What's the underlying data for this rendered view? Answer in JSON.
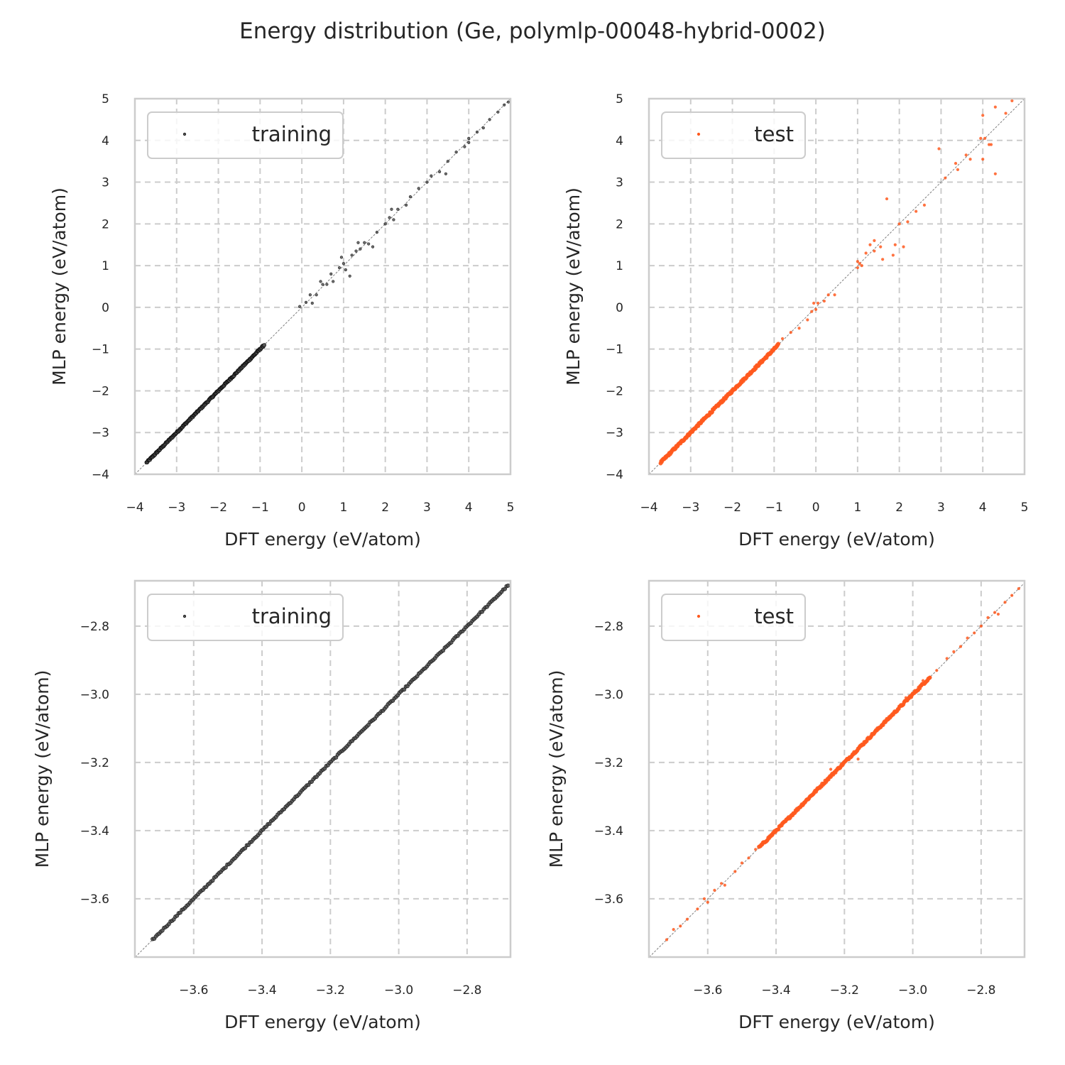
{
  "title": "Energy distribution (Ge, polymlp-00048-hybrid-0002)",
  "colors": {
    "training": "#000000",
    "test": "#ff5a1f",
    "diagonal": "#808080",
    "grid": "#cccccc",
    "spine": "#cccccc"
  },
  "chart_data": [
    {
      "type": "scatter",
      "panel": "top-left",
      "xlabel": "DFT energy (eV/atom)",
      "ylabel": "MLP energy (eV/atom)",
      "xlim": [
        -4,
        5
      ],
      "ylim": [
        -4,
        5
      ],
      "xticks": [
        "−4",
        "−3",
        "−2",
        "−1",
        "0",
        "1",
        "2",
        "3",
        "4",
        "5"
      ],
      "yticks": [
        "−4",
        "−3",
        "−2",
        "−1",
        "0",
        "1",
        "2",
        "3",
        "4",
        "5"
      ],
      "xtick_values": [
        -4,
        -3,
        -2,
        -1,
        0,
        1,
        2,
        3,
        4,
        5
      ],
      "ytick_values": [
        -4,
        -3,
        -2,
        -1,
        0,
        1,
        2,
        3,
        4,
        5
      ],
      "grid": true,
      "legend": {
        "label": "training",
        "placement": "top-left"
      },
      "series": [
        {
          "name": "training",
          "color": "#000000",
          "dense_range": [
            -3.72,
            -0.9
          ],
          "points": [
            [
              -0.05,
              0.02
            ],
            [
              0.1,
              0.12
            ],
            [
              0.2,
              0.3
            ],
            [
              0.35,
              0.3
            ],
            [
              0.5,
              0.55
            ],
            [
              0.6,
              0.55
            ],
            [
              0.7,
              0.8
            ],
            [
              0.75,
              0.62
            ],
            [
              0.9,
              0.95
            ],
            [
              1.0,
              1.05
            ],
            [
              1.05,
              0.9
            ],
            [
              1.2,
              1.25
            ],
            [
              1.3,
              1.35
            ],
            [
              1.4,
              1.4
            ],
            [
              1.5,
              1.55
            ],
            [
              1.6,
              1.52
            ],
            [
              1.8,
              1.8
            ],
            [
              2.0,
              2.0
            ],
            [
              2.1,
              2.15
            ],
            [
              2.2,
              2.1
            ],
            [
              2.3,
              2.35
            ],
            [
              2.5,
              2.45
            ],
            [
              2.6,
              2.65
            ],
            [
              2.8,
              2.85
            ],
            [
              3.0,
              3.0
            ],
            [
              3.1,
              3.15
            ],
            [
              3.3,
              3.25
            ],
            [
              3.5,
              3.5
            ],
            [
              3.7,
              3.72
            ],
            [
              3.9,
              3.85
            ],
            [
              4.0,
              4.05
            ],
            [
              4.2,
              4.2
            ],
            [
              4.35,
              4.3
            ],
            [
              4.5,
              4.5
            ],
            [
              4.7,
              4.68
            ],
            [
              4.85,
              4.85
            ],
            [
              4.95,
              4.92
            ],
            [
              0.45,
              0.62
            ],
            [
              1.15,
              0.75
            ],
            [
              3.45,
              3.2
            ],
            [
              2.15,
              2.35
            ],
            [
              0.95,
              1.2
            ],
            [
              1.7,
              1.45
            ],
            [
              4.0,
              3.95
            ],
            [
              0.25,
              0.1
            ],
            [
              1.35,
              1.55
            ]
          ]
        }
      ]
    },
    {
      "type": "scatter",
      "panel": "top-right",
      "xlabel": "DFT energy (eV/atom)",
      "ylabel": "MLP energy (eV/atom)",
      "xlim": [
        -4,
        5
      ],
      "ylim": [
        -4,
        5
      ],
      "xticks": [
        "−4",
        "−3",
        "−2",
        "−1",
        "0",
        "1",
        "2",
        "3",
        "4",
        "5"
      ],
      "yticks": [
        "−4",
        "−3",
        "−2",
        "−1",
        "0",
        "1",
        "2",
        "3",
        "4",
        "5"
      ],
      "xtick_values": [
        -4,
        -3,
        -2,
        -1,
        0,
        1,
        2,
        3,
        4,
        5
      ],
      "ytick_values": [
        -4,
        -3,
        -2,
        -1,
        0,
        1,
        2,
        3,
        4,
        5
      ],
      "grid": true,
      "legend": {
        "label": "test",
        "placement": "top-left"
      },
      "series": [
        {
          "name": "test",
          "color": "#ff5a1f",
          "dense_range": [
            -3.72,
            -0.9
          ],
          "points": [
            [
              -0.8,
              -0.75
            ],
            [
              -0.6,
              -0.6
            ],
            [
              -0.4,
              -0.5
            ],
            [
              -0.2,
              -0.3
            ],
            [
              -0.1,
              -0.1
            ],
            [
              0.0,
              -0.05
            ],
            [
              0.05,
              0.1
            ],
            [
              0.2,
              0.15
            ],
            [
              -0.05,
              0.1
            ],
            [
              0.3,
              0.3
            ],
            [
              0.45,
              0.3
            ],
            [
              1.0,
              0.95
            ],
            [
              1.05,
              1.05
            ],
            [
              1.1,
              1.0
            ],
            [
              1.0,
              1.1
            ],
            [
              1.2,
              1.3
            ],
            [
              1.3,
              1.5
            ],
            [
              1.4,
              1.6
            ],
            [
              1.4,
              1.35
            ],
            [
              1.55,
              1.45
            ],
            [
              1.6,
              1.15
            ],
            [
              1.7,
              2.6
            ],
            [
              1.85,
              1.25
            ],
            [
              1.9,
              1.5
            ],
            [
              2.0,
              2.0
            ],
            [
              2.1,
              1.45
            ],
            [
              2.2,
              2.05
            ],
            [
              2.4,
              2.3
            ],
            [
              2.6,
              2.45
            ],
            [
              2.95,
              3.8
            ],
            [
              3.1,
              3.1
            ],
            [
              3.35,
              3.45
            ],
            [
              3.4,
              3.3
            ],
            [
              3.6,
              3.65
            ],
            [
              3.7,
              3.55
            ],
            [
              3.95,
              4.05
            ],
            [
              4.0,
              4.6
            ],
            [
              4.0,
              3.55
            ],
            [
              4.05,
              4.05
            ],
            [
              4.15,
              3.9
            ],
            [
              4.2,
              3.9
            ],
            [
              4.3,
              3.2
            ],
            [
              4.3,
              4.8
            ],
            [
              4.55,
              4.65
            ],
            [
              4.7,
              4.95
            ]
          ]
        }
      ]
    },
    {
      "type": "scatter",
      "panel": "bottom-left",
      "xlabel": "DFT energy (eV/atom)",
      "ylabel": "MLP energy (eV/atom)",
      "xlim": [
        -3.772,
        -2.673
      ],
      "ylim": [
        -3.771,
        -2.667
      ],
      "xticks": [
        "−3.6",
        "−3.4",
        "−3.2",
        "−3.0",
        "−2.8"
      ],
      "yticks": [
        "−2.8",
        "−3.0",
        "−3.2",
        "−3.4",
        "−3.6"
      ],
      "xtick_values": [
        -3.6,
        -3.4,
        -3.2,
        -3.0,
        -2.8
      ],
      "ytick_values": [
        -2.8,
        -3.0,
        -3.2,
        -3.4,
        -3.6
      ],
      "grid": true,
      "legend": {
        "label": "training",
        "placement": "top-left"
      },
      "series": [
        {
          "name": "training",
          "color": "#000000",
          "dense_range": [
            -3.72,
            -2.68
          ],
          "points": []
        }
      ]
    },
    {
      "type": "scatter",
      "panel": "bottom-right",
      "xlabel": "DFT energy (eV/atom)",
      "ylabel": "MLP energy (eV/atom)",
      "xlim": [
        -3.772,
        -2.673
      ],
      "ylim": [
        -3.771,
        -2.667
      ],
      "xticks": [
        "−3.6",
        "−3.4",
        "−3.2",
        "−3.0",
        "−2.8"
      ],
      "yticks": [
        "−2.8",
        "−3.0",
        "−3.2",
        "−3.4",
        "−3.6"
      ],
      "xtick_values": [
        -3.6,
        -3.4,
        -3.2,
        -3.0,
        -2.8
      ],
      "ytick_values": [
        -2.8,
        -3.0,
        -3.2,
        -3.4,
        -3.6
      ],
      "grid": true,
      "legend": {
        "label": "test",
        "placement": "top-left"
      },
      "series": [
        {
          "name": "test",
          "color": "#ff5a1f",
          "dense_range": [
            -3.45,
            -2.95
          ],
          "points": [
            [
              -3.72,
              -3.72
            ],
            [
              -3.7,
              -3.69
            ],
            [
              -3.68,
              -3.68
            ],
            [
              -3.66,
              -3.66
            ],
            [
              -3.63,
              -3.63
            ],
            [
              -3.61,
              -3.6
            ],
            [
              -3.6,
              -3.61
            ],
            [
              -3.58,
              -3.575
            ],
            [
              -3.56,
              -3.555
            ],
            [
              -3.55,
              -3.56
            ],
            [
              -3.52,
              -3.52
            ],
            [
              -3.5,
              -3.495
            ],
            [
              -3.48,
              -3.48
            ],
            [
              -3.46,
              -3.455
            ],
            [
              -2.93,
              -2.93
            ],
            [
              -2.9,
              -2.895
            ],
            [
              -2.88,
              -2.875
            ],
            [
              -2.86,
              -2.86
            ],
            [
              -2.84,
              -2.835
            ],
            [
              -2.82,
              -2.82
            ],
            [
              -2.8,
              -2.8
            ],
            [
              -2.78,
              -2.775
            ],
            [
              -2.76,
              -2.76
            ],
            [
              -2.75,
              -2.765
            ],
            [
              -2.73,
              -2.73
            ],
            [
              -2.71,
              -2.71
            ],
            [
              -2.69,
              -2.69
            ],
            [
              -3.16,
              -3.19
            ],
            [
              -3.02,
              -3.01
            ],
            [
              -3.24,
              -3.22
            ],
            [
              -2.95,
              -2.95
            ],
            [
              -2.97,
              -2.96
            ]
          ]
        }
      ]
    }
  ]
}
